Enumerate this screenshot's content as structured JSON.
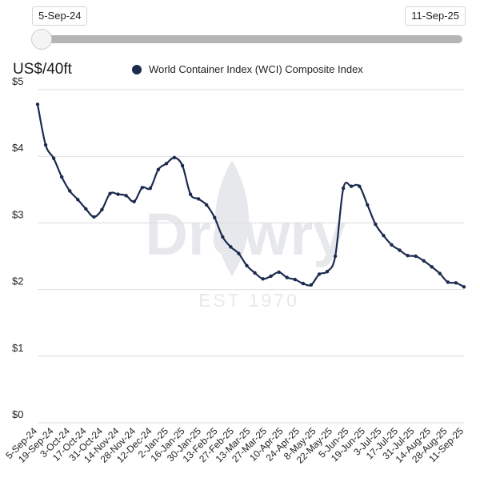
{
  "range": {
    "start_label": "5-Sep-24",
    "end_label": "11-Sep-25",
    "position": 0
  },
  "colors": {
    "series": "#1c2a4f",
    "grid": "#dcdcdc",
    "watermark": "#1c2a4f"
  },
  "watermark": {
    "brand": "Drewry",
    "est": "EST 1970"
  },
  "chart_data": {
    "type": "line",
    "ylabel": "US$/40ft",
    "ylim": [
      0,
      5
    ],
    "y_ticks": [
      "$0",
      "$1",
      "$2",
      "$3",
      "$4",
      "$5"
    ],
    "grid": true,
    "legend_position": "top",
    "x_ticks": [
      "5-Sep-24",
      "19-Sep-24",
      "3-Oct-24",
      "17-Oct-24",
      "31-Oct-24",
      "14-Nov-24",
      "28-Nov-24",
      "12-Dec-24",
      "2-Jan-25",
      "16-Jan-25",
      "30-Jan-25",
      "13-Feb-25",
      "27-Feb-25",
      "13-Mar-25",
      "27-Mar-25",
      "10-Apr-25",
      "24-Apr-25",
      "8-May-25",
      "22-May-25",
      "5-Jun-25",
      "19-Jun-25",
      "3-Jul-25",
      "17-Jul-25",
      "31-Jul-25",
      "14-Aug-25",
      "28-Aug-25",
      "11-Sep-25"
    ],
    "series": [
      {
        "name": "World Container Index (WCI) Composite Index",
        "values": [
          4.78,
          4.17,
          3.97,
          3.69,
          3.48,
          3.35,
          3.21,
          3.09,
          3.2,
          3.44,
          3.43,
          3.41,
          3.32,
          3.53,
          3.52,
          3.8,
          3.89,
          3.98,
          3.86,
          3.43,
          3.36,
          3.27,
          3.08,
          2.79,
          2.64,
          2.54,
          2.36,
          2.25,
          2.16,
          2.2,
          2.26,
          2.18,
          2.15,
          2.09,
          2.07,
          2.23,
          2.27,
          2.5,
          3.52,
          3.55,
          3.55,
          3.27,
          2.98,
          2.81,
          2.67,
          2.59,
          2.51,
          2.5,
          2.43,
          2.34,
          2.24,
          2.11,
          2.1,
          2.04
        ]
      }
    ]
  }
}
